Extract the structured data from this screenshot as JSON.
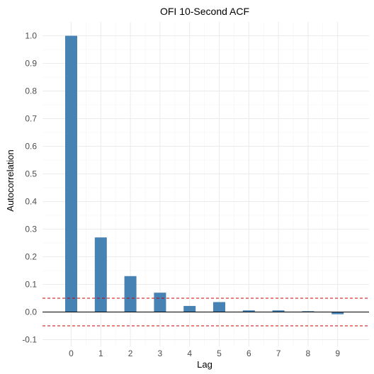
{
  "chart_data": {
    "type": "bar",
    "title": "OFI 10-Second ACF",
    "xlabel": "Lag",
    "ylabel": "Autocorrelation",
    "categories": [
      "0",
      "1",
      "2",
      "3",
      "4",
      "5",
      "6",
      "7",
      "8",
      "9"
    ],
    "values": [
      1.0,
      0.27,
      0.13,
      0.07,
      0.022,
      0.036,
      0.006,
      0.006,
      0.003,
      -0.008
    ],
    "ylim": [
      -0.1,
      1.0
    ],
    "yticks": [
      "-0.1",
      "0.0",
      "0.1",
      "0.2",
      "0.3",
      "0.4",
      "0.5",
      "0.6",
      "0.7",
      "0.8",
      "0.9",
      "1.0"
    ],
    "confidence_bound": 0.05,
    "grid": true,
    "legend": "none",
    "colors": {
      "bar": "#4682b4",
      "ci_line": "#cc0000",
      "zero_line": "#000000"
    }
  }
}
